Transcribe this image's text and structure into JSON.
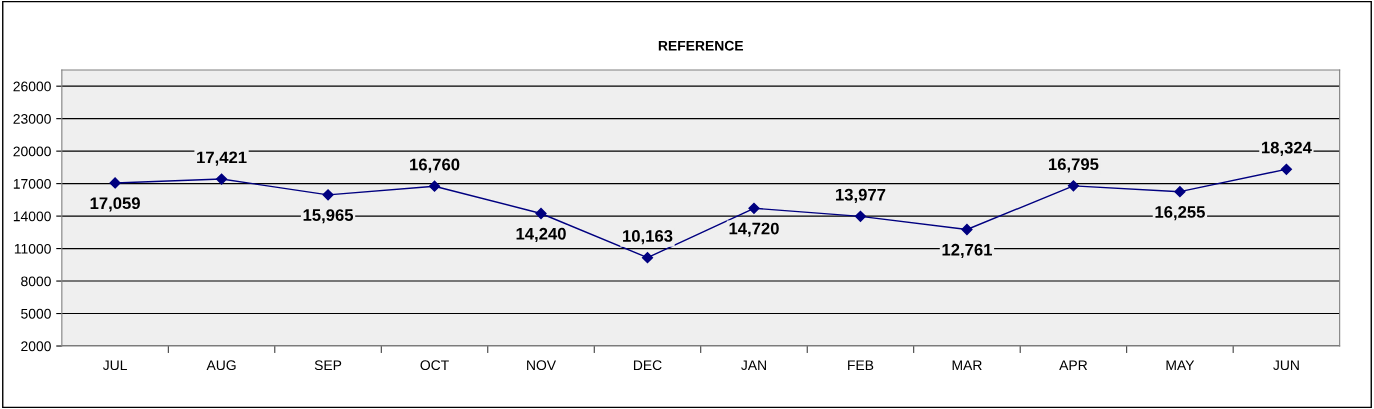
{
  "chart_data": {
    "type": "line",
    "title": "REFERENCE",
    "categories": [
      "JUL",
      "AUG",
      "SEP",
      "OCT",
      "NOV",
      "DEC",
      "JAN",
      "FEB",
      "MAR",
      "APR",
      "MAY",
      "JUN"
    ],
    "series": [
      {
        "color": "#000080",
        "values": [
          17059,
          17421,
          15965,
          16760,
          14240,
          10163,
          14720,
          13977,
          12761,
          16795,
          16255,
          18324
        ],
        "value_labels": [
          "17,059",
          "17,421",
          "15,965",
          "16,760",
          "14,240",
          "10,163",
          "14,720",
          "13,977",
          "12,761",
          "16,795",
          "16,255",
          "18,324"
        ]
      }
    ],
    "ylim": [
      2000,
      27500
    ],
    "yticks": [
      2000,
      5000,
      8000,
      11000,
      14000,
      17000,
      20000,
      23000,
      26000
    ],
    "grid": "y",
    "legend": false,
    "marker": "diamond",
    "line_style": "solid"
  }
}
